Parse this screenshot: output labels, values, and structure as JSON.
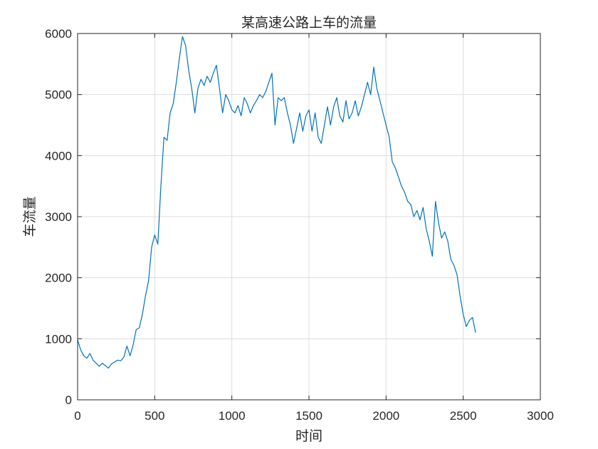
{
  "chart_data": {
    "type": "line",
    "title": "某高速公路上车的流量",
    "xlabel": "时间",
    "ylabel": "车流量",
    "xlim": [
      0,
      3000
    ],
    "ylim": [
      0,
      6000
    ],
    "xticks": [
      0,
      500,
      1000,
      1500,
      2000,
      2500,
      3000
    ],
    "yticks": [
      0,
      1000,
      2000,
      3000,
      4000,
      5000,
      6000
    ],
    "xtick_labels": [
      "0",
      "500",
      "1000",
      "1500",
      "2000",
      "2500",
      "3000"
    ],
    "ytick_labels": [
      "0",
      "1000",
      "2000",
      "3000",
      "4000",
      "5000",
      "6000"
    ],
    "grid": true,
    "line_color": "#0072BD",
    "series": [
      {
        "x": [
          0,
          20,
          40,
          60,
          80,
          100,
          120,
          140,
          160,
          180,
          200,
          220,
          240,
          260,
          280,
          300,
          320,
          340,
          360,
          380,
          400,
          420,
          440,
          460,
          480,
          500,
          520,
          540,
          560,
          580,
          600,
          620,
          640,
          660,
          680,
          700,
          720,
          740,
          760,
          780,
          800,
          820,
          840,
          860,
          880,
          900,
          920,
          940,
          960,
          980,
          1000,
          1020,
          1040,
          1060,
          1080,
          1100,
          1120,
          1140,
          1160,
          1180,
          1200,
          1220,
          1240,
          1260,
          1280,
          1300,
          1320,
          1340,
          1360,
          1380,
          1400,
          1420,
          1440,
          1460,
          1480,
          1500,
          1520,
          1540,
          1560,
          1580,
          1600,
          1620,
          1640,
          1660,
          1680,
          1700,
          1720,
          1740,
          1760,
          1780,
          1800,
          1820,
          1840,
          1860,
          1880,
          1900,
          1920,
          1940,
          1960,
          1980,
          2000,
          2020,
          2040,
          2060,
          2080,
          2100,
          2120,
          2140,
          2160,
          2180,
          2200,
          2220,
          2240,
          2260,
          2280,
          2300,
          2320,
          2340,
          2360,
          2380,
          2400,
          2420,
          2440,
          2460,
          2480,
          2500,
          2520,
          2540,
          2560,
          2580
        ],
        "y": [
          980,
          820,
          720,
          680,
          760,
          650,
          600,
          550,
          600,
          560,
          520,
          590,
          620,
          650,
          640,
          700,
          880,
          720,
          900,
          1150,
          1180,
          1400,
          1700,
          1950,
          2500,
          2700,
          2550,
          3500,
          4300,
          4250,
          4700,
          4850,
          5200,
          5600,
          5950,
          5800,
          5400,
          5100,
          4700,
          5100,
          5250,
          5150,
          5300,
          5200,
          5350,
          5480,
          5100,
          4700,
          5000,
          4900,
          4750,
          4700,
          4820,
          4650,
          4950,
          4850,
          4700,
          4820,
          4900,
          5000,
          4950,
          5050,
          5200,
          5350,
          4500,
          4950,
          4900,
          4950,
          4700,
          4500,
          4200,
          4450,
          4700,
          4400,
          4650,
          4750,
          4400,
          4700,
          4300,
          4200,
          4500,
          4800,
          4500,
          4800,
          4950,
          4650,
          4550,
          4900,
          4600,
          4700,
          4900,
          4650,
          4800,
          5000,
          5200,
          5000,
          5450,
          5100,
          4900,
          4700,
          4500,
          4300,
          3900,
          3800,
          3650,
          3500,
          3400,
          3250,
          3200,
          3000,
          3100,
          2950,
          3150,
          2800,
          2600,
          2350,
          3250,
          2900,
          2650,
          2750,
          2600,
          2300,
          2200,
          2050,
          1700,
          1400,
          1200,
          1300,
          1350,
          1100
        ]
      }
    ]
  }
}
